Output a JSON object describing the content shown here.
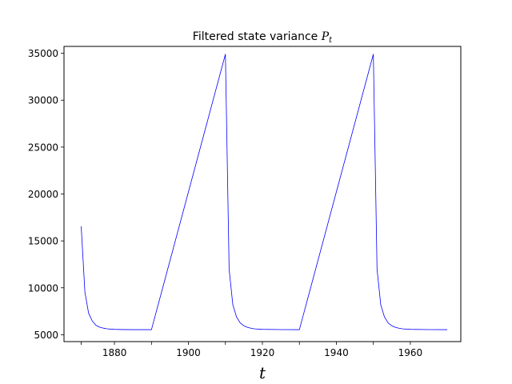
{
  "chart_data": {
    "type": "line",
    "title": "Filtered state variance ",
    "title_math_symbol": "P",
    "title_math_subscript": "t",
    "xlabel": "t",
    "ylabel": "",
    "xlim": [
      1866.35,
      1973.65
    ],
    "ylim": [
      4265,
      35735
    ],
    "x_ticks": [
      1880,
      1900,
      1920,
      1940,
      1960
    ],
    "x_tick_labels": [
      "1880",
      "1900",
      "1920",
      "1940",
      "1960"
    ],
    "x_minor_ticks": [
      1871,
      1890,
      1910,
      1930,
      1950
    ],
    "y_ticks": [
      5000,
      10000,
      15000,
      20000,
      25000,
      30000,
      35000
    ],
    "y_tick_labels": [
      "5000",
      "10000",
      "15000",
      "20000",
      "25000",
      "30000",
      "35000"
    ],
    "grid": false,
    "line_color": "#0000ff",
    "series": [
      {
        "x": [
          1871,
          1872,
          1873,
          1874,
          1875,
          1876,
          1877,
          1878,
          1879,
          1880,
          1882,
          1885,
          1890,
          1910,
          1911,
          1912,
          1913,
          1914,
          1915,
          1916,
          1917,
          1918,
          1920,
          1925,
          1930,
          1950,
          1951,
          1952,
          1953,
          1954,
          1955,
          1956,
          1957,
          1958,
          1960,
          1965,
          1970
        ],
        "y": [
          16550,
          9550,
          7300,
          6450,
          6000,
          5800,
          5700,
          5630,
          5590,
          5570,
          5550,
          5540,
          5540,
          34900,
          12000,
          8200,
          6900,
          6250,
          5950,
          5780,
          5680,
          5620,
          5570,
          5545,
          5540,
          34900,
          12000,
          8200,
          6900,
          6250,
          5950,
          5780,
          5680,
          5620,
          5570,
          5545,
          5540
        ]
      }
    ]
  }
}
